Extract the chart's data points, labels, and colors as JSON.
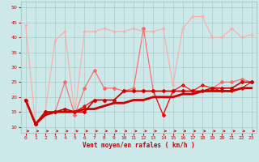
{
  "xlabel": "Vent moyen/en rafales ( km/h )",
  "bg_color": "#cce8e8",
  "grid_color": "#aacccc",
  "xlim": [
    -0.5,
    23.5
  ],
  "ylim": [
    8,
    52
  ],
  "yticks": [
    10,
    15,
    20,
    25,
    30,
    35,
    40,
    45,
    50
  ],
  "xticks": [
    0,
    1,
    2,
    3,
    4,
    5,
    6,
    7,
    8,
    9,
    10,
    11,
    12,
    13,
    14,
    15,
    16,
    17,
    18,
    19,
    20,
    21,
    22,
    23
  ],
  "series": [
    {
      "x": [
        0,
        1,
        2,
        3,
        4,
        5,
        6,
        7,
        8,
        9,
        10,
        11,
        12,
        13,
        14,
        15,
        16,
        17,
        18,
        19,
        20,
        21,
        22,
        23
      ],
      "y": [
        44,
        11,
        15,
        39,
        42,
        14,
        42,
        42,
        43,
        42,
        42,
        43,
        42,
        42,
        43,
        24,
        43,
        47,
        47,
        40,
        40,
        43,
        40,
        41
      ],
      "color": "#ffaaaa",
      "lw": 0.8,
      "marker": "+",
      "ms": 3.5,
      "zorder": 2
    },
    {
      "x": [
        0,
        1,
        2,
        3,
        4,
        5,
        6,
        7,
        8,
        9,
        10,
        11,
        12,
        13,
        14,
        15,
        16,
        17,
        18,
        19,
        20,
        21,
        22,
        23
      ],
      "y": [
        19,
        11,
        15,
        15,
        25,
        14,
        23,
        29,
        23,
        23,
        22,
        23,
        43,
        22,
        14,
        22,
        22,
        22,
        22,
        23,
        25,
        25,
        26,
        25
      ],
      "color": "#ff6666",
      "lw": 0.8,
      "marker": "D",
      "ms": 2.0,
      "zorder": 3
    },
    {
      "x": [
        0,
        1,
        2,
        3,
        4,
        5,
        6,
        7,
        8,
        9,
        10,
        11,
        12,
        13,
        14,
        15,
        16,
        17,
        18,
        19,
        20,
        21,
        22,
        23
      ],
      "y": [
        19,
        11,
        15,
        15,
        16,
        15,
        17,
        19,
        19,
        19,
        22,
        22,
        22,
        22,
        14,
        22,
        24,
        22,
        24,
        23,
        22,
        22,
        23,
        25
      ],
      "color": "#ff0000",
      "lw": 0.8,
      "marker": "D",
      "ms": 1.8,
      "zorder": 4
    },
    {
      "x": [
        0,
        1,
        2,
        3,
        4,
        5,
        6,
        7,
        8,
        9,
        10,
        11,
        12,
        13,
        14,
        15,
        16,
        17,
        18,
        19,
        20,
        21,
        22,
        23
      ],
      "y": [
        19,
        11,
        15,
        15,
        16,
        15,
        15,
        19,
        19,
        19,
        22,
        22,
        22,
        22,
        22,
        22,
        22,
        22,
        22,
        23,
        23,
        23,
        25,
        25
      ],
      "color": "#cc0000",
      "lw": 1.2,
      "marker": "D",
      "ms": 2.0,
      "zorder": 5
    },
    {
      "x": [
        0,
        1,
        2,
        3,
        4,
        5,
        6,
        7,
        8,
        9,
        10,
        11,
        12,
        13,
        14,
        15,
        16,
        17,
        18,
        19,
        20,
        21,
        22,
        23
      ],
      "y": [
        19,
        11,
        14,
        15,
        15,
        15,
        16,
        16,
        17,
        18,
        18,
        19,
        19,
        20,
        20,
        20,
        21,
        21,
        22,
        22,
        22,
        22,
        23,
        23
      ],
      "color": "#cc0000",
      "lw": 2.0,
      "marker": null,
      "ms": 0,
      "zorder": 6
    }
  ],
  "arrow_color": "#cc0000",
  "font_color": "#cc0000"
}
